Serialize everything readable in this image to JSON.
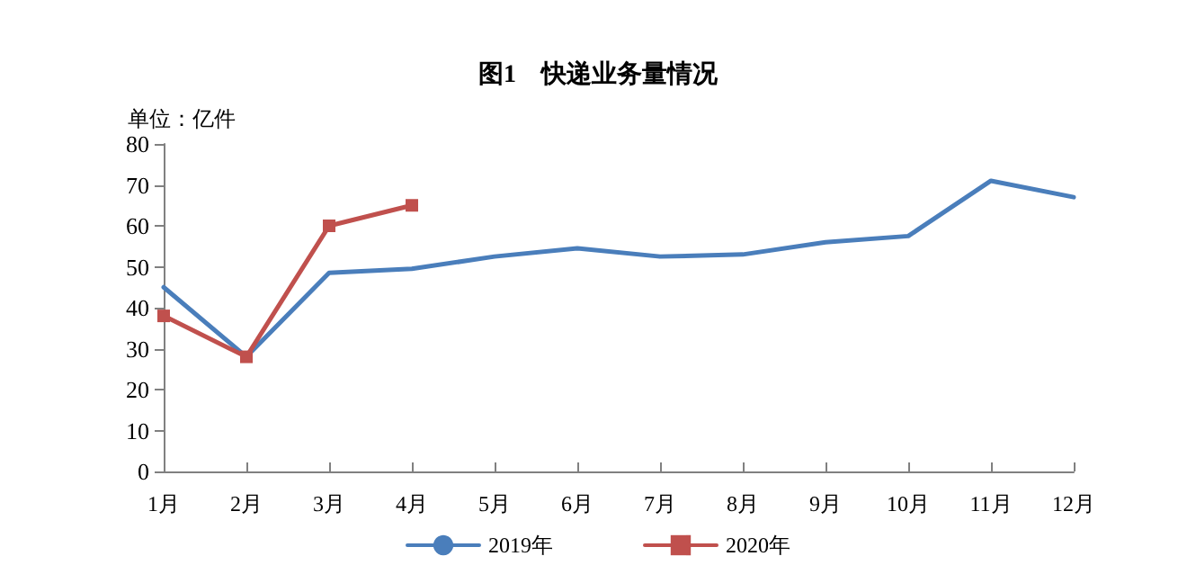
{
  "chart_data": {
    "type": "line",
    "title": "图1　快递业务量情况",
    "ylabel": "单位：亿件",
    "categories": [
      "1月",
      "2月",
      "3月",
      "4月",
      "5月",
      "6月",
      "7月",
      "8月",
      "9月",
      "10月",
      "11月",
      "12月"
    ],
    "series": [
      {
        "name": "2019年",
        "color": "#4a7ebb",
        "marker": "none",
        "values": [
          45,
          28,
          48.5,
          49.5,
          52.5,
          54.5,
          52.5,
          53,
          56,
          57.5,
          71,
          67
        ]
      },
      {
        "name": "2020年",
        "color": "#c0504d",
        "marker": "square",
        "values": [
          38,
          28,
          60,
          65,
          null,
          null,
          null,
          null,
          null,
          null,
          null,
          null
        ]
      }
    ],
    "ylim": [
      0,
      80
    ],
    "yticks": [
      0,
      10,
      20,
      30,
      40,
      50,
      60,
      70,
      80
    ],
    "grid": false,
    "legend": "bottom",
    "line_style": "solid"
  }
}
